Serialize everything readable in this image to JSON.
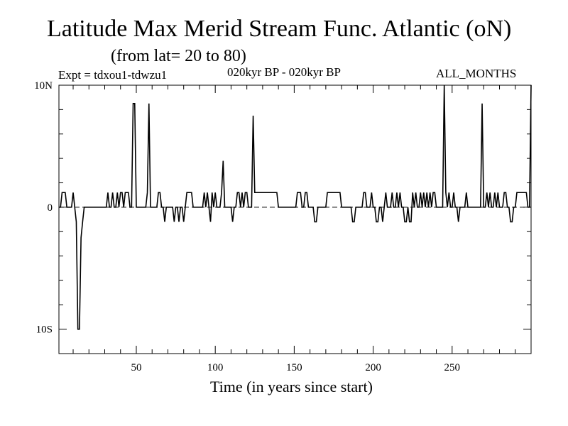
{
  "header": {
    "title": "Latitude Max Merid Stream Func. Atlantic (oN)",
    "subtitle": "(from lat= 20 to 80)",
    "experiment": "Expt = tdxou1-tdwzu1",
    "period": "020kyr BP - 020kyr BP",
    "months": "ALL_MONTHS"
  },
  "chart_data": {
    "type": "line",
    "title": "Latitude Max Merid Stream Func. Atlantic (oN)",
    "subtitle": "(from lat= 20 to 80)",
    "xlabel": "Time (in years since start)",
    "ylabel": "",
    "xlim": [
      1,
      300
    ],
    "ylim": [
      -12,
      10
    ],
    "x_ticks": [
      {
        "value": 50,
        "label": "50"
      },
      {
        "value": 100,
        "label": "100"
      },
      {
        "value": 150,
        "label": "150"
      },
      {
        "value": 200,
        "label": "200"
      },
      {
        "value": 250,
        "label": "250"
      }
    ],
    "y_ticks": [
      {
        "value": 10,
        "label": "10N"
      },
      {
        "value": 0,
        "label": "0"
      },
      {
        "value": -10,
        "label": "10S"
      }
    ],
    "zero_line": "dashed",
    "series": [
      {
        "name": "tdxou1-tdwzu1",
        "values": [
          0,
          0,
          1.2,
          1.2,
          1.2,
          0,
          0,
          0,
          0,
          1.2,
          0,
          -1.2,
          -10,
          -10,
          -2.5,
          -1.2,
          0,
          0,
          0,
          0,
          0,
          0,
          0,
          0,
          0,
          0,
          0,
          0,
          0,
          0,
          0,
          1.2,
          0,
          0,
          1.2,
          0,
          0,
          1.2,
          0,
          1.2,
          1.2,
          0,
          1.2,
          1.2,
          1.2,
          0,
          0,
          8.5,
          8.5,
          0,
          0,
          0,
          0,
          0,
          0,
          0,
          1.2,
          8.5,
          0,
          0,
          0,
          0,
          0,
          1.2,
          1.2,
          0,
          0,
          -1.2,
          0,
          0,
          0,
          0,
          0,
          -1.2,
          0,
          0,
          -1.2,
          0,
          0,
          -1.2,
          0,
          1.2,
          1.2,
          1.2,
          1.2,
          0,
          0,
          0,
          0,
          0,
          0,
          0,
          1.2,
          0,
          1.2,
          0,
          -1.2,
          1.2,
          0,
          1.2,
          0,
          0,
          0,
          1.2,
          3.8,
          0,
          0,
          0,
          0,
          0,
          -1.2,
          0,
          0,
          1.2,
          1.2,
          0,
          1.2,
          0,
          1.2,
          1.2,
          0,
          0,
          0,
          7.5,
          1.2,
          1.2,
          1.2,
          1.2,
          1.2,
          1.2,
          1.2,
          1.2,
          1.2,
          1.2,
          1.2,
          1.2,
          1.2,
          1.2,
          1.2,
          0,
          0,
          0,
          0,
          0,
          0,
          0,
          0,
          0,
          0,
          0,
          0,
          1.2,
          1.2,
          1.2,
          0,
          0,
          1.2,
          1.2,
          0,
          0,
          0,
          0,
          -1.2,
          -1.2,
          0,
          0,
          0,
          0,
          0,
          0,
          1.2,
          1.2,
          1.2,
          1.2,
          1.2,
          1.2,
          1.2,
          1.2,
          1.2,
          0,
          0,
          0,
          0,
          0,
          0,
          0,
          -1.2,
          -1.2,
          0,
          0,
          0,
          0,
          0,
          1.2,
          1.2,
          0,
          0,
          0,
          1.2,
          0,
          0,
          -1.2,
          -1.2,
          0,
          0,
          -1.2,
          0,
          1.2,
          0,
          0,
          0,
          1.2,
          0,
          0,
          1.2,
          0,
          1.2,
          0,
          0,
          -1.2,
          -1.2,
          0,
          -1.2,
          -1.2,
          1.2,
          0,
          1.2,
          0,
          0,
          1.2,
          0,
          1.2,
          0,
          1.2,
          0,
          1.2,
          0,
          1.2,
          1.2,
          0,
          0,
          0,
          0,
          0,
          10,
          1.2,
          0,
          1.2,
          0,
          0,
          1.2,
          0,
          0,
          -1.2,
          0,
          0,
          0,
          0,
          1.2,
          0,
          0,
          0,
          0,
          0,
          0,
          0,
          0,
          0,
          8.5,
          0,
          0,
          1.2,
          0,
          1.2,
          0,
          0,
          1.2,
          0,
          1.2,
          0,
          0,
          0,
          1.2,
          1.2,
          0,
          0,
          -1.2,
          -1.2,
          0,
          0,
          1.2,
          1.2,
          1.2,
          1.2,
          1.2,
          1.2,
          1.2,
          0,
          0,
          10
        ]
      }
    ]
  }
}
